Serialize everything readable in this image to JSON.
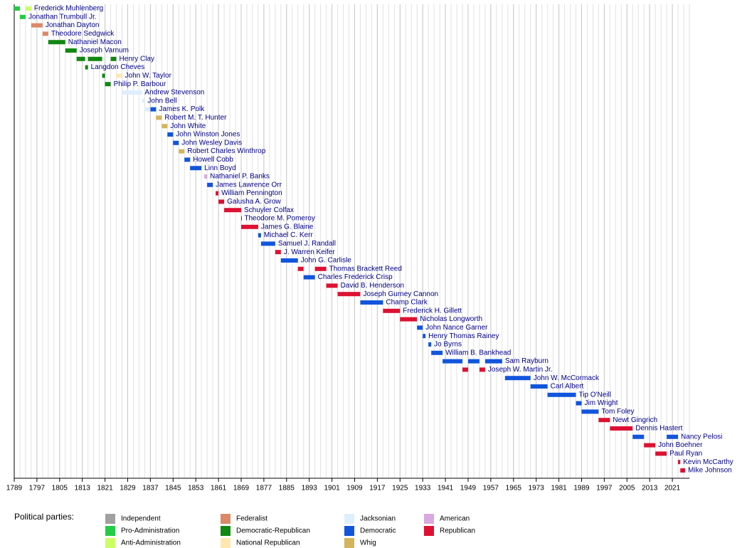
{
  "chart_data": {
    "type": "timeline",
    "xlim": [
      1789,
      2027
    ],
    "xticks": [
      1789,
      1797,
      1805,
      1813,
      1821,
      1829,
      1837,
      1845,
      1853,
      1861,
      1869,
      1877,
      1885,
      1893,
      1901,
      1909,
      1917,
      1925,
      1933,
      1941,
      1949,
      1957,
      1965,
      1973,
      1981,
      1989,
      1997,
      2005,
      2013,
      2021
    ],
    "legend_title": "Political parties:",
    "legend": [
      {
        "name": "Independent",
        "color": "#a0a0a0"
      },
      {
        "name": "Pro-Administration",
        "color": "#22cc44"
      },
      {
        "name": "Anti-Administration",
        "color": "#ccff66"
      },
      {
        "name": "Federalist",
        "color": "#dd8866"
      },
      {
        "name": "Democratic-Republican",
        "color": "#118811"
      },
      {
        "name": "National Republican",
        "color": "#ffe8b0"
      },
      {
        "name": "Jacksonian",
        "color": "#ddeeff"
      },
      {
        "name": "Democratic",
        "color": "#1155dd"
      },
      {
        "name": "Whig",
        "color": "#d4b45c"
      },
      {
        "name": "American",
        "color": "#d8a8e0"
      },
      {
        "name": "Republican",
        "color": "#dd1133"
      }
    ],
    "rows": [
      {
        "name": "Frederick Muhlenberg",
        "terms": [
          {
            "start": 1789,
            "end": 1791,
            "color": "#22cc44"
          },
          {
            "start": 1793,
            "end": 1795,
            "color": "#ccff66"
          }
        ]
      },
      {
        "name": "Jonathan Trumbull Jr.",
        "terms": [
          {
            "start": 1791,
            "end": 1793,
            "color": "#22cc44"
          }
        ]
      },
      {
        "name": "Jonathan Dayton",
        "terms": [
          {
            "start": 1795,
            "end": 1799,
            "color": "#dd8866"
          }
        ]
      },
      {
        "name": "Theodore Sedgwick",
        "terms": [
          {
            "start": 1799,
            "end": 1801,
            "color": "#dd8866"
          }
        ]
      },
      {
        "name": "Nathaniel Macon",
        "terms": [
          {
            "start": 1801,
            "end": 1807,
            "color": "#118811"
          }
        ]
      },
      {
        "name": "Joseph Varnum",
        "terms": [
          {
            "start": 1807,
            "end": 1811,
            "color": "#118811"
          }
        ]
      },
      {
        "name": "Henry Clay",
        "terms": [
          {
            "start": 1811,
            "end": 1814,
            "color": "#118811"
          },
          {
            "start": 1815,
            "end": 1820,
            "color": "#118811"
          },
          {
            "start": 1823,
            "end": 1825,
            "color": "#118811"
          }
        ]
      },
      {
        "name": "Langdon Cheves",
        "terms": [
          {
            "start": 1814,
            "end": 1815,
            "color": "#118811"
          }
        ]
      },
      {
        "name": "John W. Taylor",
        "terms": [
          {
            "start": 1820,
            "end": 1821,
            "color": "#118811"
          },
          {
            "start": 1825,
            "end": 1827,
            "color": "#ffe8b0"
          }
        ]
      },
      {
        "name": "Philip P. Barbour",
        "terms": [
          {
            "start": 1821,
            "end": 1823,
            "color": "#118811"
          }
        ]
      },
      {
        "name": "Andrew Stevenson",
        "terms": [
          {
            "start": 1827,
            "end": 1834,
            "color": "#ddeeff"
          }
        ]
      },
      {
        "name": "John Bell",
        "terms": [
          {
            "start": 1834,
            "end": 1835,
            "color": "#ddeeff"
          }
        ]
      },
      {
        "name": "James K. Polk",
        "terms": [
          {
            "start": 1835,
            "end": 1837,
            "color": "#ddeeff"
          },
          {
            "start": 1837,
            "end": 1839,
            "color": "#1155dd"
          }
        ]
      },
      {
        "name": "Robert M. T. Hunter",
        "terms": [
          {
            "start": 1839,
            "end": 1841,
            "color": "#d4b45c"
          }
        ]
      },
      {
        "name": "John White",
        "terms": [
          {
            "start": 1841,
            "end": 1843,
            "color": "#d4b45c"
          }
        ]
      },
      {
        "name": "John Winston Jones",
        "terms": [
          {
            "start": 1843,
            "end": 1845,
            "color": "#1155dd"
          }
        ]
      },
      {
        "name": "John Wesley Davis",
        "terms": [
          {
            "start": 1845,
            "end": 1847,
            "color": "#1155dd"
          }
        ]
      },
      {
        "name": "Robert Charles Winthrop",
        "terms": [
          {
            "start": 1847,
            "end": 1849,
            "color": "#d4b45c"
          }
        ]
      },
      {
        "name": "Howell Cobb",
        "terms": [
          {
            "start": 1849,
            "end": 1851,
            "color": "#1155dd"
          }
        ]
      },
      {
        "name": "Linn Boyd",
        "terms": [
          {
            "start": 1851,
            "end": 1855,
            "color": "#1155dd"
          }
        ]
      },
      {
        "name": "Nathaniel P. Banks",
        "terms": [
          {
            "start": 1856,
            "end": 1857,
            "color": "#d8a8e0"
          }
        ]
      },
      {
        "name": "James Lawrence Orr",
        "terms": [
          {
            "start": 1857,
            "end": 1859,
            "color": "#1155dd"
          }
        ]
      },
      {
        "name": "William Pennington",
        "terms": [
          {
            "start": 1860,
            "end": 1861,
            "color": "#dd1133"
          }
        ]
      },
      {
        "name": "Galusha A. Grow",
        "terms": [
          {
            "start": 1861,
            "end": 1863,
            "color": "#dd1133"
          }
        ]
      },
      {
        "name": "Schuyler Colfax",
        "terms": [
          {
            "start": 1863,
            "end": 1869,
            "color": "#dd1133"
          }
        ]
      },
      {
        "name": "Theodore M. Pomeroy",
        "terms": [
          {
            "start": 1869,
            "end": 1869.1,
            "color": "#dd1133"
          }
        ]
      },
      {
        "name": "James G. Blaine",
        "terms": [
          {
            "start": 1869,
            "end": 1875,
            "color": "#dd1133"
          }
        ]
      },
      {
        "name": "Michael C. Kerr",
        "terms": [
          {
            "start": 1875,
            "end": 1876,
            "color": "#1155dd"
          }
        ]
      },
      {
        "name": "Samuel J. Randall",
        "terms": [
          {
            "start": 1876,
            "end": 1881,
            "color": "#1155dd"
          }
        ]
      },
      {
        "name": "J. Warren Keifer",
        "terms": [
          {
            "start": 1881,
            "end": 1883,
            "color": "#dd1133"
          }
        ]
      },
      {
        "name": "John G. Carlisle",
        "terms": [
          {
            "start": 1883,
            "end": 1889,
            "color": "#1155dd"
          }
        ]
      },
      {
        "name": "Thomas Brackett Reed",
        "terms": [
          {
            "start": 1889,
            "end": 1891,
            "color": "#dd1133"
          },
          {
            "start": 1895,
            "end": 1899,
            "color": "#dd1133"
          }
        ]
      },
      {
        "name": "Charles Frederick Crisp",
        "terms": [
          {
            "start": 1891,
            "end": 1895,
            "color": "#1155dd"
          }
        ]
      },
      {
        "name": "David B. Henderson",
        "terms": [
          {
            "start": 1899,
            "end": 1903,
            "color": "#dd1133"
          }
        ]
      },
      {
        "name": "Joseph Gurney Cannon",
        "terms": [
          {
            "start": 1903,
            "end": 1911,
            "color": "#dd1133"
          }
        ]
      },
      {
        "name": "Champ Clark",
        "terms": [
          {
            "start": 1911,
            "end": 1919,
            "color": "#1155dd"
          }
        ]
      },
      {
        "name": "Frederick H. Gillett",
        "terms": [
          {
            "start": 1919,
            "end": 1925,
            "color": "#dd1133"
          }
        ]
      },
      {
        "name": "Nicholas Longworth",
        "terms": [
          {
            "start": 1925,
            "end": 1931,
            "color": "#dd1133"
          }
        ]
      },
      {
        "name": "John Nance Garner",
        "terms": [
          {
            "start": 1931,
            "end": 1933,
            "color": "#1155dd"
          }
        ]
      },
      {
        "name": "Henry Thomas Rainey",
        "terms": [
          {
            "start": 1933,
            "end": 1934,
            "color": "#1155dd"
          }
        ]
      },
      {
        "name": "Jo Byrns",
        "terms": [
          {
            "start": 1935,
            "end": 1936,
            "color": "#1155dd"
          }
        ]
      },
      {
        "name": "William B. Bankhead",
        "terms": [
          {
            "start": 1936,
            "end": 1940,
            "color": "#1155dd"
          }
        ]
      },
      {
        "name": "Sam Rayburn",
        "terms": [
          {
            "start": 1940,
            "end": 1947,
            "color": "#1155dd"
          },
          {
            "start": 1949,
            "end": 1953,
            "color": "#1155dd"
          },
          {
            "start": 1955,
            "end": 1961,
            "color": "#1155dd"
          }
        ]
      },
      {
        "name": "Joseph W. Martin Jr.",
        "terms": [
          {
            "start": 1947,
            "end": 1949,
            "color": "#dd1133"
          },
          {
            "start": 1953,
            "end": 1955,
            "color": "#dd1133"
          }
        ]
      },
      {
        "name": "John W. McCormack",
        "terms": [
          {
            "start": 1962,
            "end": 1971,
            "color": "#1155dd"
          }
        ]
      },
      {
        "name": "Carl Albert",
        "terms": [
          {
            "start": 1971,
            "end": 1977,
            "color": "#1155dd"
          }
        ]
      },
      {
        "name": "Tip O'Neill",
        "terms": [
          {
            "start": 1977,
            "end": 1987,
            "color": "#1155dd"
          }
        ]
      },
      {
        "name": "Jim Wright",
        "terms": [
          {
            "start": 1987,
            "end": 1989,
            "color": "#1155dd"
          }
        ]
      },
      {
        "name": "Tom Foley",
        "terms": [
          {
            "start": 1989,
            "end": 1995,
            "color": "#1155dd"
          }
        ]
      },
      {
        "name": "Newt Gingrich",
        "terms": [
          {
            "start": 1995,
            "end": 1999,
            "color": "#dd1133"
          }
        ]
      },
      {
        "name": "Dennis Hastert",
        "terms": [
          {
            "start": 1999,
            "end": 2007,
            "color": "#dd1133"
          }
        ]
      },
      {
        "name": "Nancy Pelosi",
        "terms": [
          {
            "start": 2007,
            "end": 2011,
            "color": "#1155dd"
          },
          {
            "start": 2019,
            "end": 2023,
            "color": "#1155dd"
          }
        ]
      },
      {
        "name": "John Boehner",
        "terms": [
          {
            "start": 2011,
            "end": 2015,
            "color": "#dd1133"
          }
        ]
      },
      {
        "name": "Paul Ryan",
        "terms": [
          {
            "start": 2015,
            "end": 2019,
            "color": "#dd1133"
          }
        ]
      },
      {
        "name": "Kevin McCarthy",
        "terms": [
          {
            "start": 2023,
            "end": 2023.8,
            "color": "#dd1133"
          }
        ]
      },
      {
        "name": "Mike Johnson",
        "terms": [
          {
            "start": 2023.8,
            "end": 2025.5,
            "color": "#dd1133"
          }
        ]
      }
    ]
  }
}
